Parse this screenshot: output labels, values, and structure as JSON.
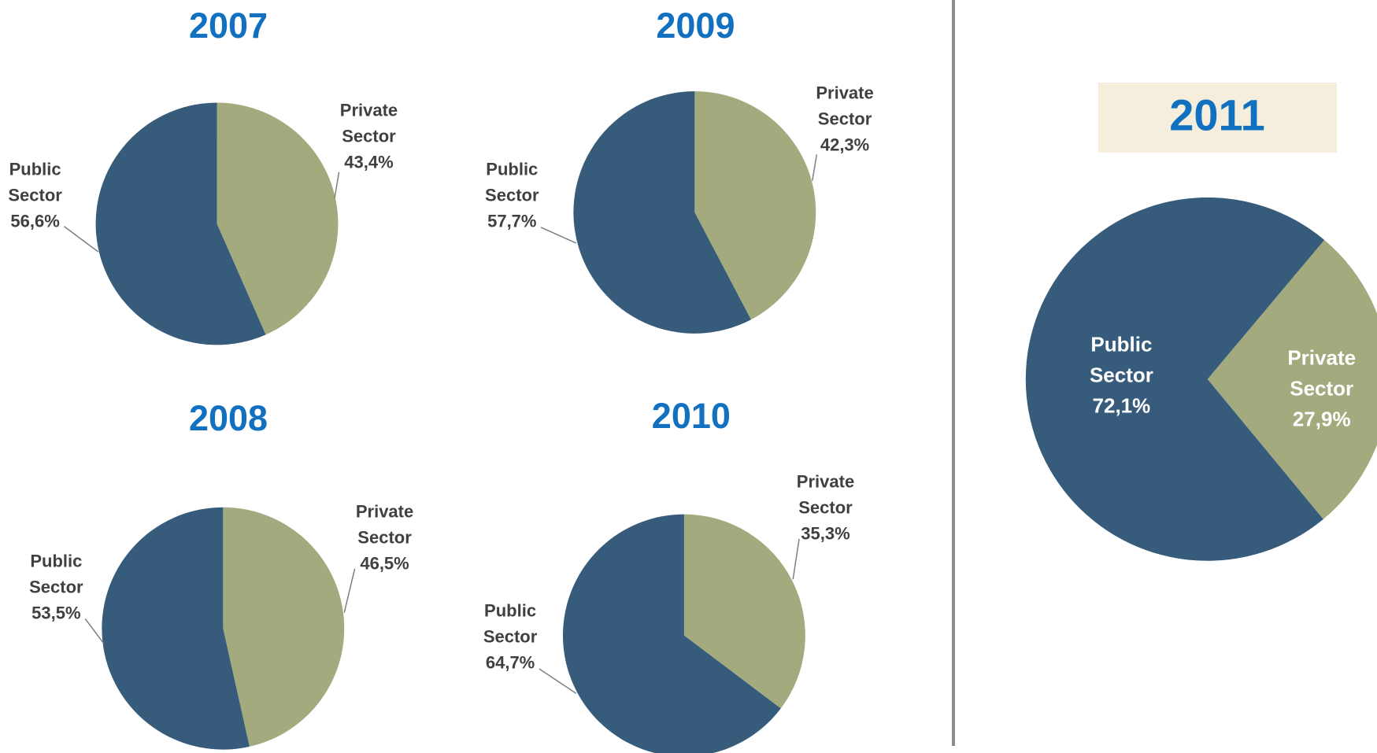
{
  "chart_data": [
    {
      "type": "pie",
      "title": "2007",
      "categories": [
        "Private Sector",
        "Public Sector"
      ],
      "values": [
        43.4,
        56.6
      ],
      "value_labels": [
        "43,4%",
        "56,6%"
      ],
      "colors": [
        "#a3aa7e",
        "#365b7b"
      ],
      "start_angle": 0
    },
    {
      "type": "pie",
      "title": "2009",
      "categories": [
        "Private Sector",
        "Public Sector"
      ],
      "values": [
        42.3,
        57.7
      ],
      "value_labels": [
        "42,3%",
        "57,7%"
      ],
      "colors": [
        "#a3aa7e",
        "#365b7b"
      ],
      "start_angle": 0
    },
    {
      "type": "pie",
      "title": "2008",
      "categories": [
        "Private Sector",
        "Public Sector"
      ],
      "values": [
        46.5,
        53.5
      ],
      "value_labels": [
        "46,5%",
        "53,5%"
      ],
      "colors": [
        "#a3aa7e",
        "#365b7b"
      ],
      "start_angle": 0
    },
    {
      "type": "pie",
      "title": "2010",
      "categories": [
        "Private Sector",
        "Public Sector"
      ],
      "values": [
        35.3,
        64.7
      ],
      "value_labels": [
        "35,3%",
        "64,7%"
      ],
      "colors": [
        "#a3aa7e",
        "#365b7b"
      ],
      "start_angle": 0
    },
    {
      "type": "pie",
      "title": "2011",
      "categories": [
        "Private Sector",
        "Public Sector"
      ],
      "values": [
        27.9,
        72.1
      ],
      "value_labels": [
        "27,9%",
        "72,1%"
      ],
      "colors": [
        "#a3aa7e",
        "#365b7b"
      ],
      "start_angle": 40
    }
  ]
}
